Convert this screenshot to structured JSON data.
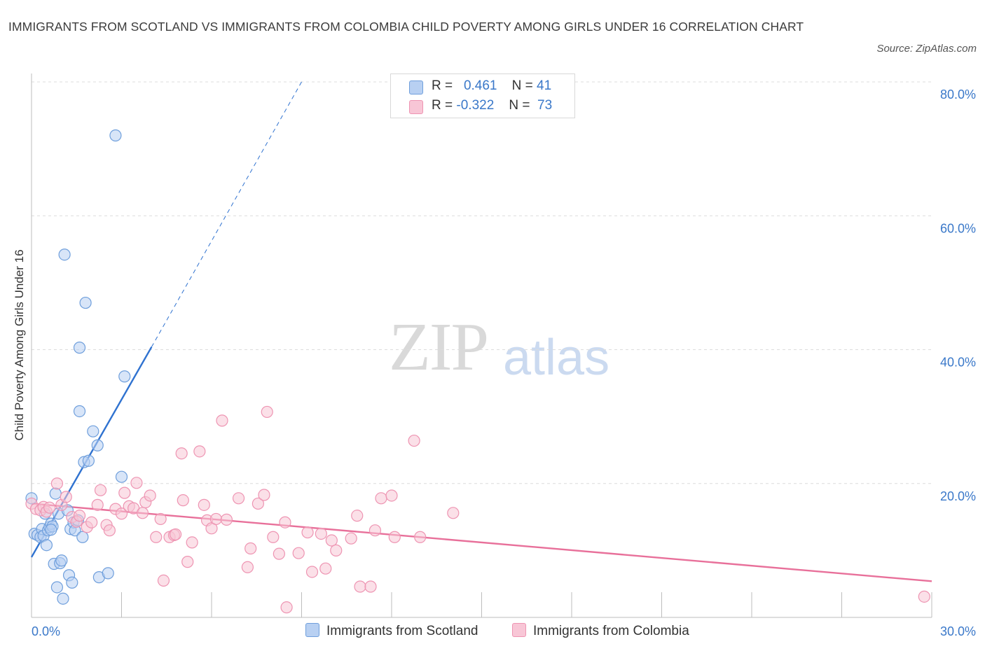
{
  "title": "IMMIGRANTS FROM SCOTLAND VS IMMIGRANTS FROM COLOMBIA CHILD POVERTY AMONG GIRLS UNDER 16 CORRELATION CHART",
  "source": "Source: ZipAtlas.com",
  "watermark": {
    "zip": "ZIP",
    "atlas": "atlas"
  },
  "legend": {
    "rows": [
      {
        "r_label": "R =",
        "r_value": "0.461",
        "n_label": "N =",
        "n_value": "41",
        "color": "#8fb7ea"
      },
      {
        "r_label": "R =",
        "r_value": "-0.322",
        "n_label": "N = ",
        "n_value": "73",
        "color": "#f4a7bf"
      }
    ]
  },
  "bottom_legend": [
    "Immigrants from Scotland",
    "Immigrants from Colombia"
  ],
  "colors": {
    "scotland_fill": "#b8d0f2",
    "scotland_stroke": "#6f9fdc",
    "scotland_line": "#2f72d0",
    "colombia_fill": "#f8c6d6",
    "colombia_stroke": "#ee94b2",
    "colombia_line": "#e8709a",
    "axis_text": "#3a78c9",
    "grid": "#dcdcdc"
  },
  "chart_data": {
    "type": "scatter",
    "ylabel": "Child Poverty Among Girls Under 16",
    "xlim": [
      0,
      30
    ],
    "ylim": [
      0,
      80
    ],
    "x_ticks": [
      "0.0%",
      "30.0%"
    ],
    "y_ticks": [
      {
        "value": 80,
        "label": "80.0%"
      },
      {
        "value": 60,
        "label": "60.0%"
      },
      {
        "value": 40,
        "label": "40.0%"
      },
      {
        "value": 20,
        "label": "20.0%"
      }
    ],
    "series": [
      {
        "name": "Immigrants from Scotland",
        "points": [
          [
            0.0,
            17.8
          ],
          [
            0.1,
            12.5
          ],
          [
            0.2,
            12.3
          ],
          [
            0.3,
            12.0
          ],
          [
            0.35,
            13.2
          ],
          [
            0.4,
            12.2
          ],
          [
            0.45,
            15.5
          ],
          [
            0.5,
            10.8
          ],
          [
            0.55,
            13.0
          ],
          [
            0.6,
            13.5
          ],
          [
            0.65,
            14.0
          ],
          [
            0.7,
            13.6
          ],
          [
            0.75,
            8.0
          ],
          [
            0.8,
            18.5
          ],
          [
            0.85,
            4.5
          ],
          [
            0.9,
            15.5
          ],
          [
            0.95,
            8.1
          ],
          [
            1.0,
            8.5
          ],
          [
            1.05,
            2.8
          ],
          [
            1.1,
            54.2
          ],
          [
            1.2,
            16.0
          ],
          [
            1.25,
            6.3
          ],
          [
            1.3,
            13.2
          ],
          [
            1.35,
            5.2
          ],
          [
            1.4,
            14.2
          ],
          [
            1.45,
            13.0
          ],
          [
            1.6,
            30.8
          ],
          [
            1.6,
            40.3
          ],
          [
            1.7,
            12.0
          ],
          [
            1.75,
            23.2
          ],
          [
            1.8,
            47.0
          ],
          [
            1.9,
            23.4
          ],
          [
            2.05,
            27.8
          ],
          [
            2.2,
            25.7
          ],
          [
            2.25,
            6.0
          ],
          [
            2.55,
            6.6
          ],
          [
            2.8,
            72.0
          ],
          [
            3.0,
            21.0
          ],
          [
            3.1,
            36.0
          ],
          [
            1.55,
            14.5
          ],
          [
            0.65,
            13.1
          ]
        ]
      },
      {
        "name": "Immigrants from Colombia",
        "points": [
          [
            0.0,
            17.0
          ],
          [
            0.15,
            16.2
          ],
          [
            0.3,
            16.0
          ],
          [
            0.4,
            16.5
          ],
          [
            0.5,
            15.8
          ],
          [
            0.6,
            16.4
          ],
          [
            0.85,
            20.0
          ],
          [
            1.0,
            16.8
          ],
          [
            1.15,
            18.0
          ],
          [
            1.35,
            15.0
          ],
          [
            1.5,
            14.3
          ],
          [
            1.6,
            15.2
          ],
          [
            1.85,
            13.5
          ],
          [
            2.0,
            14.2
          ],
          [
            2.2,
            16.8
          ],
          [
            2.3,
            19.0
          ],
          [
            2.5,
            13.8
          ],
          [
            2.6,
            13.0
          ],
          [
            2.8,
            16.2
          ],
          [
            3.0,
            15.5
          ],
          [
            3.1,
            18.6
          ],
          [
            3.25,
            16.6
          ],
          [
            3.4,
            16.3
          ],
          [
            3.5,
            20.1
          ],
          [
            3.7,
            15.6
          ],
          [
            3.8,
            17.2
          ],
          [
            3.95,
            18.2
          ],
          [
            4.15,
            12.0
          ],
          [
            4.3,
            14.7
          ],
          [
            4.4,
            5.5
          ],
          [
            4.6,
            12.0
          ],
          [
            4.75,
            12.3
          ],
          [
            4.8,
            12.4
          ],
          [
            5.0,
            24.5
          ],
          [
            5.05,
            17.5
          ],
          [
            5.2,
            8.3
          ],
          [
            5.35,
            11.2
          ],
          [
            5.6,
            24.8
          ],
          [
            5.75,
            16.8
          ],
          [
            5.85,
            14.5
          ],
          [
            6.0,
            13.3
          ],
          [
            6.15,
            14.7
          ],
          [
            6.35,
            29.4
          ],
          [
            6.5,
            14.6
          ],
          [
            6.9,
            17.8
          ],
          [
            7.2,
            7.5
          ],
          [
            7.3,
            10.3
          ],
          [
            7.55,
            17.0
          ],
          [
            7.75,
            18.3
          ],
          [
            7.85,
            30.7
          ],
          [
            8.05,
            12.0
          ],
          [
            8.25,
            9.5
          ],
          [
            8.45,
            14.2
          ],
          [
            8.5,
            1.5
          ],
          [
            8.9,
            9.6
          ],
          [
            9.2,
            12.7
          ],
          [
            9.35,
            6.8
          ],
          [
            9.65,
            12.5
          ],
          [
            9.8,
            7.3
          ],
          [
            10.0,
            11.5
          ],
          [
            10.15,
            10.0
          ],
          [
            10.65,
            11.8
          ],
          [
            10.85,
            15.2
          ],
          [
            10.95,
            4.6
          ],
          [
            11.3,
            4.6
          ],
          [
            11.45,
            13.0
          ],
          [
            11.65,
            17.8
          ],
          [
            12.0,
            18.2
          ],
          [
            12.1,
            12.0
          ],
          [
            12.95,
            12.0
          ],
          [
            12.75,
            26.4
          ],
          [
            14.05,
            15.6
          ],
          [
            29.75,
            3.1
          ]
        ]
      }
    ],
    "trendlines": [
      {
        "series": "Immigrants from Scotland",
        "x": [
          0.0,
          4.0
        ],
        "y": [
          9.0,
          40.4
        ],
        "extended_to": [
          9.0,
          80.0
        ]
      },
      {
        "series": "Immigrants from Colombia",
        "x": [
          0.0,
          30.0
        ],
        "y": [
          17.0,
          5.4
        ]
      }
    ],
    "grid": true,
    "legend_position": "top-center"
  }
}
